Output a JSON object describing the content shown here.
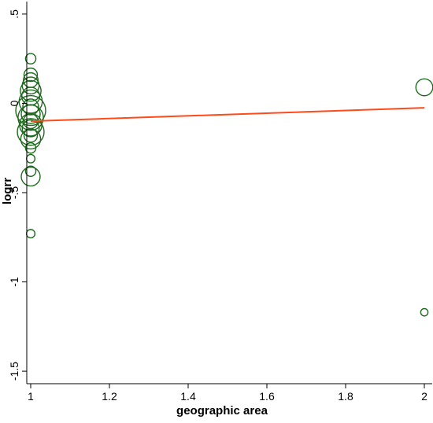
{
  "chart_data": {
    "type": "scatter",
    "title": "",
    "xlabel": "geographic area",
    "ylabel": "logrr",
    "xlim": [
      0.99,
      2.02
    ],
    "ylim": [
      -1.57,
      0.57
    ],
    "x_ticks": [
      1,
      1.2,
      1.4,
      1.6,
      1.8,
      2
    ],
    "x_tick_labels": [
      "1",
      "1.2",
      "1.4",
      "1.6",
      "1.8",
      "2"
    ],
    "y_ticks": [
      0.5,
      0,
      -0.5,
      -1,
      -1.5
    ],
    "y_tick_labels": [
      ".5",
      "0",
      "-.5",
      "-1",
      "-1.5"
    ],
    "grid": false,
    "marker_color": "#1f6a1f",
    "fit_color": "#ff4a1a",
    "points": [
      {
        "x": 1,
        "y": 0.25,
        "w": 0.3
      },
      {
        "x": 1,
        "y": 0.16,
        "w": 0.5
      },
      {
        "x": 1,
        "y": 0.13,
        "w": 0.6
      },
      {
        "x": 1,
        "y": 0.1,
        "w": 0.8
      },
      {
        "x": 1,
        "y": 0.07,
        "w": 1.2
      },
      {
        "x": 1,
        "y": 0.04,
        "w": 0.9
      },
      {
        "x": 1,
        "y": 0.01,
        "w": 1.5
      },
      {
        "x": 1,
        "y": -0.02,
        "w": 0.7
      },
      {
        "x": 1,
        "y": -0.04,
        "w": 2.5
      },
      {
        "x": 1,
        "y": -0.06,
        "w": 1.0
      },
      {
        "x": 1,
        "y": -0.08,
        "w": 1.8
      },
      {
        "x": 1,
        "y": -0.1,
        "w": 0.6
      },
      {
        "x": 1,
        "y": -0.12,
        "w": 1.4
      },
      {
        "x": 1,
        "y": -0.14,
        "w": 0.8
      },
      {
        "x": 1,
        "y": -0.16,
        "w": 2.0
      },
      {
        "x": 1,
        "y": -0.18,
        "w": 0.5
      },
      {
        "x": 1,
        "y": -0.2,
        "w": 1.1
      },
      {
        "x": 1,
        "y": -0.25,
        "w": 0.3
      },
      {
        "x": 1,
        "y": -0.31,
        "w": 0.2
      },
      {
        "x": 1,
        "y": -0.38,
        "w": 0.3
      },
      {
        "x": 1,
        "y": -0.41,
        "w": 1.0
      },
      {
        "x": 1,
        "y": -0.73,
        "w": 0.2
      },
      {
        "x": 2,
        "y": 0.09,
        "w": 0.8
      },
      {
        "x": 2,
        "y": -1.17,
        "w": 0.15
      }
    ],
    "fit_line": {
      "x": [
        1,
        2
      ],
      "y": [
        -0.1,
        -0.025
      ]
    }
  }
}
